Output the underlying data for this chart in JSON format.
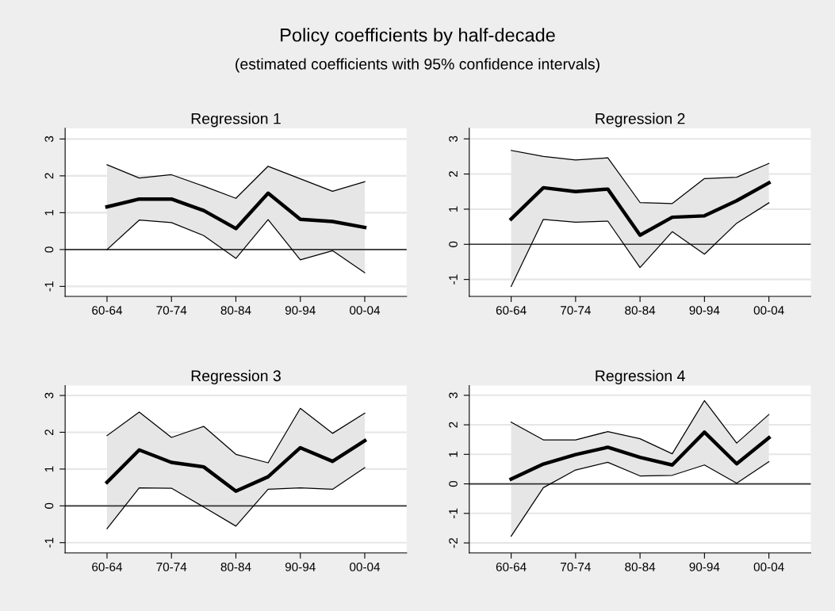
{
  "chart_data": [
    {
      "type": "other",
      "title": "Policy coefficients by half-decade",
      "subtitle": "(estimated coefficients with 95% confidence intervals)"
    },
    {
      "type": "line",
      "title": "Regression 1",
      "categories": [
        "60-64",
        null,
        "70-74",
        null,
        "80-84",
        null,
        "90-94",
        null,
        "00-04"
      ],
      "ylim": [
        -1.27,
        3.29
      ],
      "yticks": [
        -1,
        0,
        1,
        2,
        3
      ],
      "grid": "y",
      "ref_lines": [
        {
          "axis": "y",
          "value": 0,
          "color": "#333333"
        }
      ],
      "series": [
        {
          "color": "#000000",
          "values": [
            1.16,
            1.37,
            1.37,
            1.06,
            0.57,
            1.53,
            0.82,
            0.76,
            0.6
          ],
          "lower": [
            0.0,
            0.8,
            0.73,
            0.38,
            -0.24,
            0.81,
            -0.28,
            -0.03,
            -0.63
          ],
          "upper": [
            2.3,
            1.94,
            2.03,
            1.72,
            1.39,
            2.26,
            1.92,
            1.58,
            1.84
          ]
        },
        {
          "color": "#000000",
          "values": [
            2.3,
            1.94,
            2.03,
            1.72,
            1.39,
            2.26,
            1.92,
            1.58,
            1.84
          ]
        },
        {
          "color": "#000000",
          "values": [
            0.0,
            0.8,
            0.73,
            0.38,
            -0.24,
            0.81,
            -0.28,
            -0.03,
            -0.63
          ]
        }
      ]
    },
    {
      "type": "line",
      "title": "Regression 2",
      "categories": [
        "60-64",
        null,
        "70-74",
        null,
        "80-84",
        null,
        "90-94",
        null,
        "00-04"
      ],
      "ylim": [
        -1.48,
        3.3
      ],
      "yticks": [
        -1,
        0,
        1,
        2,
        3
      ],
      "grid": "y",
      "ref_lines": [
        {
          "axis": "y",
          "value": 0,
          "color": "#333333"
        }
      ],
      "series": [
        {
          "color": "#000000",
          "values": [
            0.72,
            1.61,
            1.5,
            1.57,
            0.26,
            0.77,
            0.81,
            1.24,
            1.75
          ],
          "lower": [
            -1.2,
            0.71,
            0.63,
            0.66,
            -0.66,
            0.36,
            -0.28,
            0.6,
            1.18
          ],
          "upper": [
            2.67,
            2.5,
            2.4,
            2.46,
            1.19,
            1.16,
            1.87,
            1.91,
            2.3
          ]
        },
        {
          "color": "#000000",
          "values": [
            2.67,
            2.5,
            2.4,
            2.46,
            1.19,
            1.16,
            1.87,
            1.91,
            2.3
          ]
        },
        {
          "color": "#000000",
          "values": [
            -1.2,
            0.71,
            0.63,
            0.66,
            -0.66,
            0.36,
            -0.28,
            0.6,
            1.18
          ]
        }
      ]
    },
    {
      "type": "line",
      "title": "Regression 3",
      "categories": [
        "60-64",
        null,
        "70-74",
        null,
        "80-84",
        null,
        "90-94",
        null,
        "00-04"
      ],
      "ylim": [
        -1.28,
        3.27
      ],
      "yticks": [
        -1,
        0,
        1,
        2,
        3
      ],
      "grid": "y",
      "ref_lines": [
        {
          "axis": "y",
          "value": 0,
          "color": "#333333"
        }
      ],
      "series": [
        {
          "color": "#000000",
          "values": [
            0.64,
            1.52,
            1.18,
            1.06,
            0.4,
            0.79,
            1.58,
            1.21,
            1.77
          ],
          "lower": [
            -0.62,
            0.49,
            0.48,
            -0.03,
            -0.55,
            0.45,
            0.49,
            0.45,
            1.04
          ],
          "upper": [
            1.91,
            2.55,
            1.86,
            2.16,
            1.4,
            1.17,
            2.65,
            1.97,
            2.52
          ]
        },
        {
          "color": "#000000",
          "values": [
            1.91,
            2.55,
            1.86,
            2.16,
            1.4,
            1.17,
            2.65,
            1.97,
            2.52
          ]
        },
        {
          "color": "#000000",
          "values": [
            -0.62,
            0.49,
            0.48,
            -0.03,
            -0.55,
            0.45,
            0.49,
            0.45,
            1.04
          ]
        }
      ]
    },
    {
      "type": "line",
      "title": "Regression 4",
      "categories": [
        "60-64",
        null,
        "70-74",
        null,
        "80-84",
        null,
        "90-94",
        null,
        "00-04"
      ],
      "ylim": [
        -2.34,
        3.33
      ],
      "yticks": [
        -2,
        -1,
        0,
        1,
        2,
        3
      ],
      "grid": "y",
      "ref_lines": [
        {
          "axis": "y",
          "value": 0,
          "color": "#333333"
        }
      ],
      "series": [
        {
          "color": "#000000",
          "values": [
            0.16,
            0.67,
            0.99,
            1.24,
            0.9,
            0.64,
            1.75,
            0.68,
            1.56
          ],
          "lower": [
            -1.77,
            -0.13,
            0.47,
            0.73,
            0.27,
            0.29,
            0.64,
            0.02,
            0.75
          ],
          "upper": [
            2.09,
            1.49,
            1.49,
            1.77,
            1.53,
            1.02,
            2.82,
            1.38,
            2.35
          ]
        },
        {
          "color": "#000000",
          "values": [
            2.09,
            1.49,
            1.49,
            1.77,
            1.53,
            1.02,
            2.82,
            1.38,
            2.35
          ]
        },
        {
          "color": "#000000",
          "values": [
            -1.77,
            -0.13,
            0.47,
            0.73,
            0.27,
            0.29,
            0.64,
            0.02,
            0.75
          ]
        }
      ]
    }
  ]
}
